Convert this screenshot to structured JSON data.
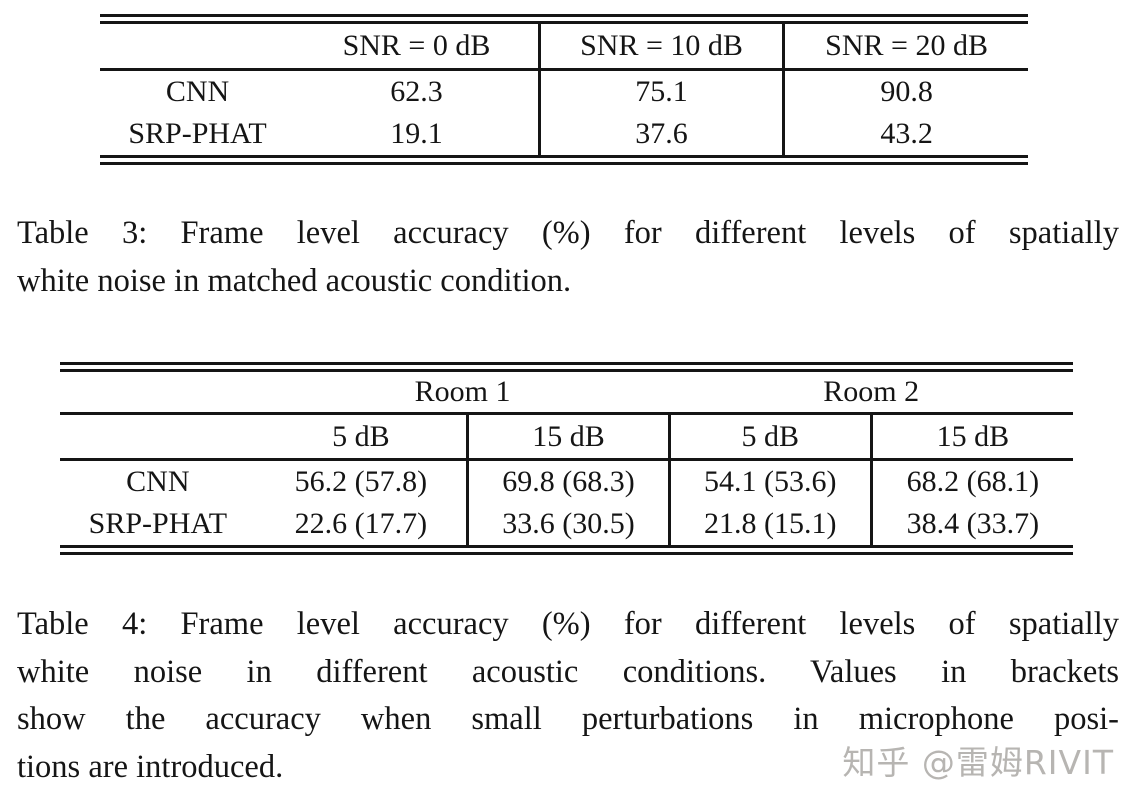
{
  "table3": {
    "columns": [
      "",
      "SNR = 0 dB",
      "SNR = 10 dB",
      "SNR = 20 dB"
    ],
    "rows": [
      {
        "label": "CNN",
        "values": [
          "62.3",
          "75.1",
          "90.8"
        ]
      },
      {
        "label": "SRP-PHAT",
        "values": [
          "19.1",
          "37.6",
          "43.2"
        ]
      }
    ],
    "caption_lines": [
      "Table 3: Frame level accuracy (%) for different levels of spatially",
      "white noise in matched acoustic condition."
    ]
  },
  "table4": {
    "group_headers": [
      "Room 1",
      "Room 2"
    ],
    "sub_headers": [
      "5 dB",
      "15 dB",
      "5 dB",
      "15 dB"
    ],
    "rows": [
      {
        "label": "CNN",
        "values": [
          "56.2 (57.8)",
          "69.8 (68.3)",
          "54.1 (53.6)",
          "68.2 (68.1)"
        ]
      },
      {
        "label": "SRP-PHAT",
        "values": [
          "22.6 (17.7)",
          "33.6 (30.5)",
          "21.8 (15.1)",
          "38.4 (33.7)"
        ]
      }
    ],
    "caption_lines": [
      "Table 4: Frame level accuracy (%) for different levels of spatially",
      "white noise in different acoustic conditions.  Values in brackets",
      "show the accuracy when small perturbations in microphone posi-",
      "tions are introduced."
    ]
  },
  "watermark": {
    "text": "知乎 @雷姆RIVIT",
    "color": "#b7b5b2"
  }
}
